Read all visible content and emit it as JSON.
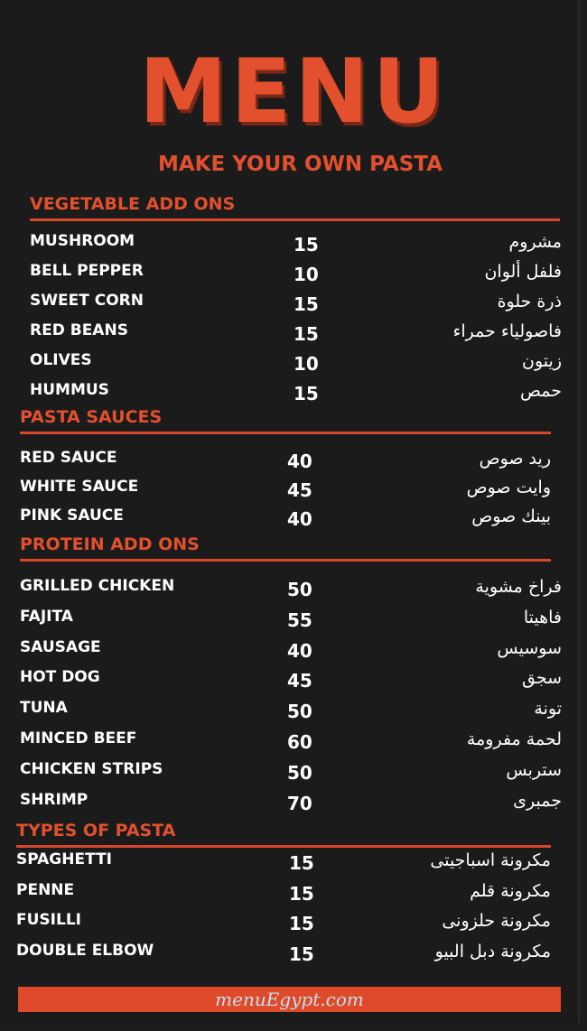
{
  "header": {
    "title": "MENU",
    "subtitle": "MAKE YOUR OWN PASTA"
  },
  "sections": [
    {
      "title": "VEGETABLE ADD ONS",
      "items": [
        {
          "name": "MUSHROOM",
          "price": "15",
          "arabic": "مشروم"
        },
        {
          "name": "BELL PEPPER",
          "price": "10",
          "arabic": "فلفل ألوان"
        },
        {
          "name": "SWEET CORN",
          "price": "15",
          "arabic": "ذرة حلوة"
        },
        {
          "name": "RED BEANS",
          "price": "15",
          "arabic": "فاصولياء حمراء"
        },
        {
          "name": "OLIVES",
          "price": "10",
          "arabic": "زيتون"
        },
        {
          "name": "HUMMUS",
          "price": "15",
          "arabic": "حمص"
        }
      ]
    },
    {
      "title": "PASTA SAUCES",
      "items": [
        {
          "name": "RED SAUCE",
          "price": "40",
          "arabic": "ريد صوص"
        },
        {
          "name": "WHITE SAUCE",
          "price": "45",
          "arabic": "وايت صوص"
        },
        {
          "name": "PINK SAUCE",
          "price": "40",
          "arabic": "بينك صوص"
        }
      ]
    },
    {
      "title": "PROTEIN ADD ONS",
      "items": [
        {
          "name": "GRILLED CHICKEN",
          "price": "50",
          "arabic": "فراخ مشوية"
        },
        {
          "name": "FAJITA",
          "price": "55",
          "arabic": "فاهيتا"
        },
        {
          "name": "SAUSAGE",
          "price": "40",
          "arabic": "سوسيس"
        },
        {
          "name": "HOT DOG",
          "price": "45",
          "arabic": "سجق"
        },
        {
          "name": "TUNA",
          "price": "50",
          "arabic": "تونة"
        },
        {
          "name": "MINCED BEEF",
          "price": "60",
          "arabic": "لحمة مفرومة"
        },
        {
          "name": "CHICKEN STRIPS",
          "price": "50",
          "arabic": "ستربس"
        },
        {
          "name": "SHRIMP",
          "price": "70",
          "arabic": "جمبرى"
        }
      ]
    },
    {
      "title": "TYPES OF PASTA",
      "items": [
        {
          "name": "SPAGHETTI",
          "price": "15",
          "arabic": "مكرونة اسباجيتى"
        },
        {
          "name": "PENNE",
          "price": "15",
          "arabic": "مكرونة قلم"
        },
        {
          "name": "FUSILLI",
          "price": "15",
          "arabic": "مكرونة حلزونى"
        },
        {
          "name": "DOUBLE ELBOW",
          "price": "15",
          "arabic": "مكرونة دبل البيو"
        }
      ]
    }
  ],
  "watermark": "menuEgypt.com",
  "colors": {
    "accent": "#e2502d",
    "background": "#1b1b1b",
    "text": "#ffffff"
  }
}
